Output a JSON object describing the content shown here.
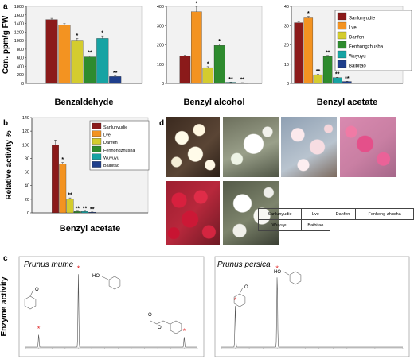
{
  "panel_labels": {
    "a": "a",
    "b": "b",
    "c": "c",
    "d": "d"
  },
  "legend_entries": [
    "Sanlunyudie",
    "Lve",
    "Danfen",
    "Fenhongzhusha",
    "Wuyuyu",
    "Baibitao"
  ],
  "colors": {
    "Sanlunyudie": "#8b1a1a",
    "Lve": "#f39321",
    "Danfen": "#d4cc2e",
    "Fenhongzhusha": "#2e8b2e",
    "Wuyuyu": "#17a3a3",
    "Baibitao": "#1f3f8c"
  },
  "chart_data": [
    {
      "type": "bar",
      "panel": "a",
      "title": "Benzaldehyde",
      "ylabel": "Con. ppm/g FW",
      "ylim": [
        0,
        1800
      ],
      "yticks": [
        "0",
        "200",
        "400",
        "600",
        "800",
        "1000",
        "1200",
        "1400",
        "1600",
        "1800"
      ],
      "categories": [
        "Sanlunyudie",
        "Lve",
        "Danfen",
        "Fenhongzhusha",
        "Wuyuyu",
        "Baibitao"
      ],
      "values": [
        1490,
        1370,
        1010,
        620,
        1050,
        160
      ],
      "errors": [
        30,
        25,
        40,
        25,
        60,
        15
      ],
      "marks": [
        "",
        "",
        "*",
        "**",
        "*",
        "**"
      ]
    },
    {
      "type": "bar",
      "panel": "a",
      "title": "Benzyl alcohol",
      "ylim": [
        0,
        400
      ],
      "yticks": [
        "0",
        "100",
        "200",
        "300",
        "400"
      ],
      "categories": [
        "Sanlunyudie",
        "Lve",
        "Danfen",
        "Fenhongzhusha",
        "Wuyuyu",
        "Baibitao"
      ],
      "values": [
        142,
        372,
        82,
        197,
        6,
        3
      ],
      "errors": [
        4,
        28,
        5,
        8,
        1,
        1
      ],
      "marks": [
        "",
        "*",
        "*",
        "*",
        "**",
        "**"
      ]
    },
    {
      "type": "bar",
      "panel": "a",
      "title": "Benzyl acetate",
      "ylim": [
        0,
        40
      ],
      "yticks": [
        "0",
        "10",
        "20",
        "30",
        "40"
      ],
      "categories": [
        "Sanlunyudie",
        "Lve",
        "Danfen",
        "Fenhongzhusha",
        "Wuyuyu",
        "Baibitao"
      ],
      "values": [
        31.5,
        34,
        4.5,
        14,
        3,
        1
      ],
      "errors": [
        0.6,
        0.8,
        0.3,
        0.5,
        0.2,
        0.1
      ],
      "marks": [
        "",
        "*",
        "**",
        "**",
        "**",
        "**"
      ]
    },
    {
      "type": "bar",
      "panel": "b",
      "title": "Benzyl acetate",
      "ylabel": "Relative activity %",
      "ylim": [
        0,
        140
      ],
      "yticks": [
        "0",
        "20",
        "40",
        "60",
        "80",
        "100",
        "120",
        "140"
      ],
      "categories": [
        "Sanlunyudie",
        "Lve",
        "Danfen",
        "Fenhongzhusha",
        "Wuyuyu",
        "Baibitao"
      ],
      "values": [
        100,
        72,
        20,
        2,
        2,
        1
      ],
      "errors": [
        7,
        2,
        2,
        0.5,
        0.5,
        0.3
      ],
      "marks": [
        "",
        "*",
        "**",
        "**",
        "**",
        "**"
      ]
    },
    {
      "type": "line",
      "panel": "c",
      "title": "Prunus mume",
      "ylabel": "Enzyme activity",
      "x": [
        10.0,
        10.3,
        10.6,
        10.9,
        11.2,
        11.5,
        11.8,
        12.1,
        12.4,
        12.7,
        13.0,
        13.3,
        13.6,
        13.9
      ],
      "peaks": [
        10.3,
        11.2,
        13.6
      ],
      "peak_heights": [
        0.16,
        0.92,
        0.13
      ]
    },
    {
      "type": "line",
      "panel": "c",
      "title": "Prunus persica",
      "x": [
        10.0,
        10.3,
        10.6,
        10.9,
        11.2,
        11.5,
        11.8,
        12.1,
        12.4,
        12.7,
        13.0,
        13.3,
        13.6,
        13.9
      ],
      "peaks": [
        10.3,
        11.2
      ],
      "peak_heights": [
        0.52,
        0.92
      ]
    }
  ],
  "photo_table": {
    "row1": [
      "Sanlunyudie",
      "Lve",
      "Danfen",
      "Fenhong-zhusha"
    ],
    "row2": [
      "Wuyuyu",
      "Baibitao"
    ]
  },
  "structure_labels": {
    "ho1": "HO",
    "ho2": "HO",
    "o1": "O",
    "o2": "O",
    "o3": "O",
    "o4": "O"
  }
}
